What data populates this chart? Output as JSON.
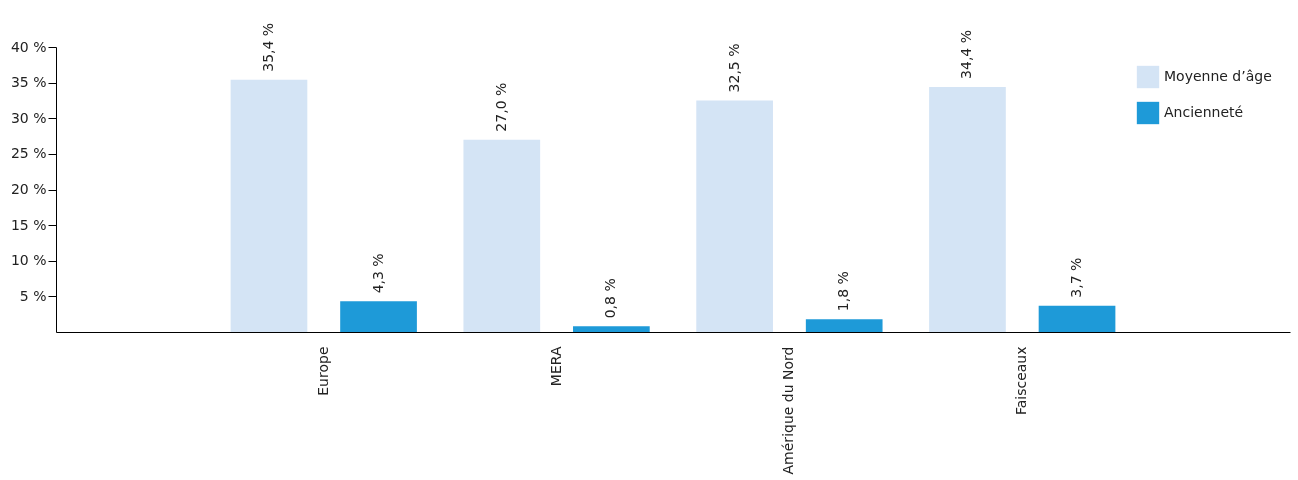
{
  "chart_data": {
    "type": "bar",
    "categories": [
      "Europe",
      "MERA",
      "Amérique du Nord",
      "Faisceaux"
    ],
    "series": [
      {
        "name": "Moyenne d’âge",
        "color": "#d4e4f5",
        "values": [
          35.4,
          27.0,
          32.5,
          34.4
        ],
        "value_labels": [
          "35,4 %",
          "27,0 %",
          "32,5 %",
          "34,4 %"
        ]
      },
      {
        "name": "Ancienneté",
        "color": "#1e9ad8",
        "values": [
          4.3,
          0.8,
          1.8,
          3.7
        ],
        "value_labels": [
          "4,3 %",
          "0,8 %",
          "1,8 %",
          "3,7 %"
        ]
      }
    ],
    "ylim": [
      0,
      40
    ],
    "yticks": [
      {
        "value": 5,
        "label": "5 %"
      },
      {
        "value": 10,
        "label": "10 %"
      },
      {
        "value": 15,
        "label": "15 %"
      },
      {
        "value": 20,
        "label": "20 %"
      },
      {
        "value": 25,
        "label": "25 %"
      },
      {
        "value": 30,
        "label": "30 %"
      },
      {
        "value": 35,
        "label": "35 %"
      },
      {
        "value": 40,
        "label": "40 %"
      }
    ],
    "grid": false,
    "legend": "top right"
  }
}
